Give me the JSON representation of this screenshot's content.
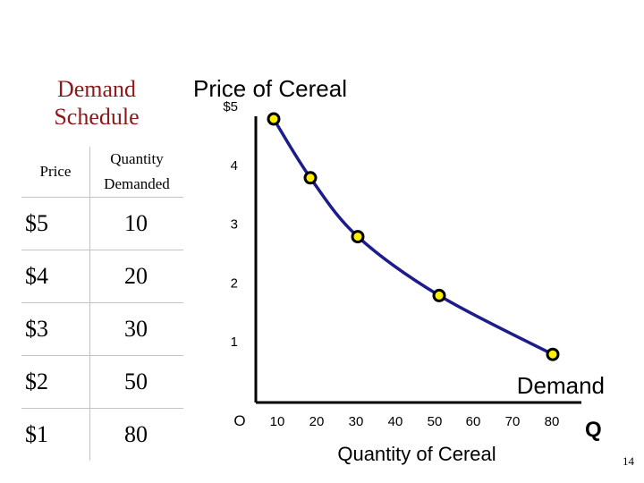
{
  "schedule": {
    "title_line1": "Demand",
    "title_line2": "Schedule",
    "headers": {
      "price": "Price",
      "quantity_line1": "Quantity",
      "quantity_line2": "Demanded"
    },
    "rows": [
      {
        "price": "$5",
        "quantity": "10"
      },
      {
        "price": "$4",
        "quantity": "20"
      },
      {
        "price": "$3",
        "quantity": "30"
      },
      {
        "price": "$2",
        "quantity": "50"
      },
      {
        "price": "$1",
        "quantity": "80"
      }
    ]
  },
  "chart_data": {
    "type": "line",
    "title": "Price of Cereal",
    "xlabel": "Quantity of Cereal",
    "x_axis_letter": "Q",
    "origin_label": "O",
    "xlim": [
      0,
      80
    ],
    "ylim": [
      0,
      5
    ],
    "x_ticks": [
      10,
      20,
      30,
      40,
      50,
      60,
      70,
      80
    ],
    "x_tick_labels": [
      "10",
      "20",
      "30",
      "40",
      "50",
      "60",
      "70",
      "80"
    ],
    "y_ticks": [
      1,
      2,
      3,
      4,
      5
    ],
    "y_tick_labels": [
      "1",
      "2",
      "3",
      "4",
      "$5"
    ],
    "grid": false,
    "series": [
      {
        "name": "Demand",
        "x": [
          10,
          20,
          30,
          50,
          80
        ],
        "y": [
          5,
          4,
          3,
          2,
          1
        ],
        "line_color": "#1c1c8c",
        "marker_fill": "#ffef00",
        "marker_stroke": "#000000"
      }
    ]
  },
  "page_number": "14"
}
